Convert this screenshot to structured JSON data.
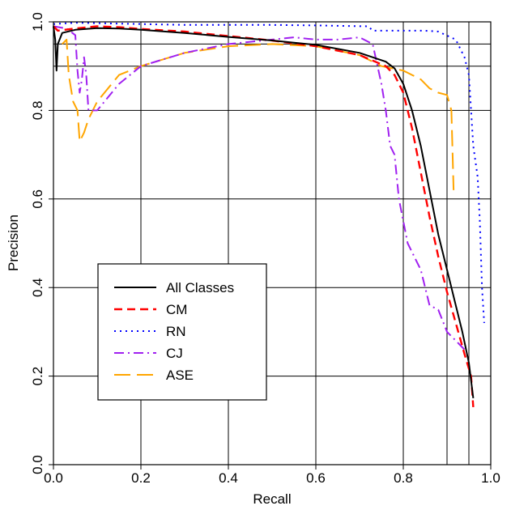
{
  "chart_data": {
    "type": "line",
    "title": "",
    "xlabel": "Recall",
    "ylabel": "Precision",
    "xlim": [
      0,
      1
    ],
    "ylim": [
      0,
      1
    ],
    "xticks": [
      "0.0",
      "0.2",
      "0.4",
      "0.6",
      "0.8",
      "1.0"
    ],
    "yticks": [
      "0.0",
      "0.2",
      "0.4",
      "0.6",
      "0.8",
      "1.0"
    ],
    "grid_x": [
      0.2,
      0.4,
      0.6,
      0.8,
      0.9,
      0.95
    ],
    "grid_y": [
      0.2,
      0.4,
      0.6,
      0.8,
      0.9,
      0.95
    ],
    "legend_position": "lower-left",
    "series": [
      {
        "name": "All Classes",
        "color": "#000000",
        "style": "solid",
        "points": [
          [
            0.0,
            0.99
          ],
          [
            0.004,
            0.96
          ],
          [
            0.007,
            0.89
          ],
          [
            0.01,
            0.95
          ],
          [
            0.02,
            0.975
          ],
          [
            0.05,
            0.982
          ],
          [
            0.1,
            0.986
          ],
          [
            0.15,
            0.985
          ],
          [
            0.2,
            0.982
          ],
          [
            0.3,
            0.975
          ],
          [
            0.4,
            0.966
          ],
          [
            0.5,
            0.958
          ],
          [
            0.6,
            0.948
          ],
          [
            0.7,
            0.93
          ],
          [
            0.76,
            0.91
          ],
          [
            0.78,
            0.895
          ],
          [
            0.8,
            0.86
          ],
          [
            0.82,
            0.8
          ],
          [
            0.84,
            0.72
          ],
          [
            0.86,
            0.62
          ],
          [
            0.88,
            0.52
          ],
          [
            0.9,
            0.44
          ],
          [
            0.92,
            0.36
          ],
          [
            0.935,
            0.3
          ],
          [
            0.95,
            0.23
          ],
          [
            0.96,
            0.15
          ]
        ]
      },
      {
        "name": "CM",
        "color": "#ff0000",
        "style": "dashed",
        "points": [
          [
            0.0,
            0.99
          ],
          [
            0.01,
            0.98
          ],
          [
            0.05,
            0.985
          ],
          [
            0.1,
            0.99
          ],
          [
            0.15,
            0.988
          ],
          [
            0.2,
            0.984
          ],
          [
            0.3,
            0.978
          ],
          [
            0.4,
            0.968
          ],
          [
            0.5,
            0.958
          ],
          [
            0.6,
            0.945
          ],
          [
            0.7,
            0.925
          ],
          [
            0.76,
            0.9
          ],
          [
            0.78,
            0.88
          ],
          [
            0.8,
            0.84
          ],
          [
            0.82,
            0.76
          ],
          [
            0.84,
            0.66
          ],
          [
            0.86,
            0.56
          ],
          [
            0.88,
            0.47
          ],
          [
            0.9,
            0.39
          ],
          [
            0.92,
            0.32
          ],
          [
            0.94,
            0.25
          ],
          [
            0.955,
            0.2
          ],
          [
            0.96,
            0.13
          ]
        ]
      },
      {
        "name": "RN",
        "color": "#0000ff",
        "style": "dotted",
        "points": [
          [
            0.0,
            0.995
          ],
          [
            0.05,
            0.998
          ],
          [
            0.2,
            0.995
          ],
          [
            0.3,
            0.993
          ],
          [
            0.5,
            0.993
          ],
          [
            0.6,
            0.992
          ],
          [
            0.72,
            0.99
          ],
          [
            0.73,
            0.98
          ],
          [
            0.85,
            0.98
          ],
          [
            0.88,
            0.978
          ],
          [
            0.92,
            0.96
          ],
          [
            0.94,
            0.92
          ],
          [
            0.95,
            0.88
          ],
          [
            0.955,
            0.8
          ],
          [
            0.96,
            0.72
          ],
          [
            0.97,
            0.65
          ],
          [
            0.975,
            0.55
          ],
          [
            0.98,
            0.4
          ],
          [
            0.985,
            0.32
          ]
        ]
      },
      {
        "name": "CJ",
        "color": "#a020f0",
        "style": "dashdot",
        "points": [
          [
            0.0,
            0.99
          ],
          [
            0.03,
            0.985
          ],
          [
            0.05,
            0.97
          ],
          [
            0.055,
            0.89
          ],
          [
            0.06,
            0.84
          ],
          [
            0.065,
            0.87
          ],
          [
            0.07,
            0.92
          ],
          [
            0.075,
            0.88
          ],
          [
            0.08,
            0.8
          ],
          [
            0.1,
            0.8
          ],
          [
            0.15,
            0.86
          ],
          [
            0.2,
            0.9
          ],
          [
            0.3,
            0.93
          ],
          [
            0.4,
            0.95
          ],
          [
            0.5,
            0.96
          ],
          [
            0.55,
            0.965
          ],
          [
            0.6,
            0.96
          ],
          [
            0.65,
            0.96
          ],
          [
            0.7,
            0.965
          ],
          [
            0.73,
            0.95
          ],
          [
            0.75,
            0.86
          ],
          [
            0.76,
            0.8
          ],
          [
            0.77,
            0.72
          ],
          [
            0.78,
            0.7
          ],
          [
            0.79,
            0.6
          ],
          [
            0.8,
            0.55
          ],
          [
            0.81,
            0.5
          ],
          [
            0.82,
            0.48
          ],
          [
            0.83,
            0.46
          ],
          [
            0.84,
            0.44
          ],
          [
            0.85,
            0.4
          ],
          [
            0.86,
            0.36
          ],
          [
            0.88,
            0.35
          ],
          [
            0.9,
            0.3
          ],
          [
            0.92,
            0.28
          ],
          [
            0.94,
            0.26
          ]
        ]
      },
      {
        "name": "ASE",
        "color": "#ffa500",
        "style": "longdash",
        "points": [
          [
            0.02,
            0.95
          ],
          [
            0.03,
            0.96
          ],
          [
            0.035,
            0.88
          ],
          [
            0.04,
            0.85
          ],
          [
            0.045,
            0.82
          ],
          [
            0.055,
            0.8
          ],
          [
            0.06,
            0.73
          ],
          [
            0.07,
            0.75
          ],
          [
            0.08,
            0.78
          ],
          [
            0.1,
            0.82
          ],
          [
            0.15,
            0.88
          ],
          [
            0.2,
            0.9
          ],
          [
            0.3,
            0.93
          ],
          [
            0.4,
            0.945
          ],
          [
            0.5,
            0.95
          ],
          [
            0.6,
            0.945
          ],
          [
            0.65,
            0.935
          ],
          [
            0.7,
            0.925
          ],
          [
            0.75,
            0.9
          ],
          [
            0.8,
            0.89
          ],
          [
            0.82,
            0.88
          ],
          [
            0.84,
            0.87
          ],
          [
            0.86,
            0.85
          ],
          [
            0.88,
            0.84
          ],
          [
            0.9,
            0.835
          ],
          [
            0.91,
            0.8
          ],
          [
            0.915,
            0.62
          ]
        ]
      }
    ]
  }
}
